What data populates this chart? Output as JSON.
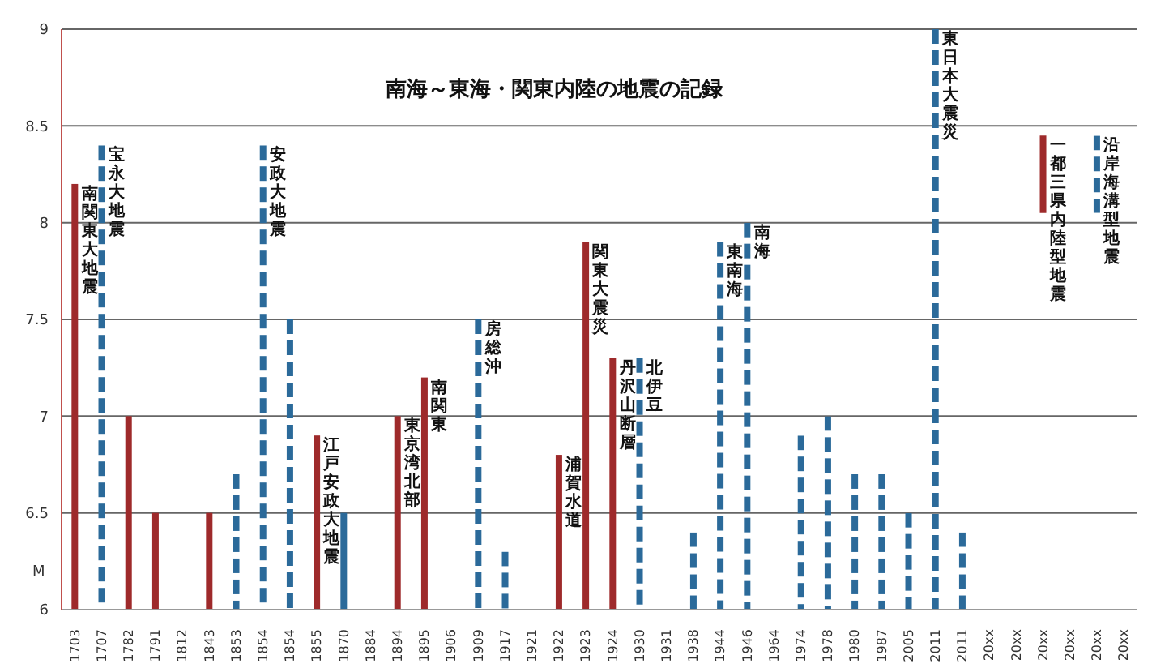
{
  "chart_data": {
    "type": "bar",
    "title": "南海～東海・関東内陸の地震の記録",
    "ylabel": "M",
    "categories": [
      "1703",
      "1707",
      "1782",
      "1791",
      "1812",
      "1843",
      "1853",
      "1854",
      "1854",
      "1855",
      "1870",
      "1884",
      "1894",
      "1895",
      "1906",
      "1909",
      "1917",
      "1921",
      "1922",
      "1923",
      "1924",
      "1930",
      "1931",
      "1938",
      "1944",
      "1946",
      "1964",
      "1974",
      "1978",
      "1980",
      "1987",
      "2005",
      "2011",
      "2011",
      "20xx",
      "20xx",
      "20xx",
      "20xx",
      "20xx",
      "20xx"
    ],
    "series": [
      {
        "color": "#9e2a2b",
        "line_style": "solid",
        "values": [
          8.2,
          null,
          7.0,
          6.5,
          null,
          6.5,
          null,
          null,
          null,
          6.9,
          null,
          null,
          7.0,
          7.2,
          null,
          null,
          null,
          null,
          6.8,
          7.9,
          7.3,
          null,
          null,
          null,
          null,
          null,
          null,
          null,
          null,
          null,
          null,
          null,
          null,
          null,
          null,
          null,
          null,
          null,
          null,
          null
        ]
      },
      {
        "color": "#2b6a9a",
        "line_style": "dashed",
        "values": [
          null,
          8.4,
          null,
          null,
          null,
          null,
          6.7,
          8.4,
          7.5,
          null,
          null,
          null,
          null,
          null,
          null,
          7.5,
          6.3,
          null,
          null,
          null,
          null,
          7.3,
          null,
          6.4,
          7.9,
          8.0,
          null,
          6.9,
          7.0,
          6.7,
          6.7,
          6.5,
          9.0,
          6.4,
          null,
          null,
          null,
          null,
          null,
          null
        ]
      },
      {
        "color": "#2b6a9a",
        "line_style": "solid",
        "values": [
          null,
          null,
          null,
          null,
          null,
          null,
          null,
          null,
          null,
          null,
          6.5,
          null,
          null,
          null,
          null,
          null,
          null,
          null,
          null,
          null,
          null,
          null,
          null,
          null,
          null,
          null,
          null,
          null,
          null,
          null,
          null,
          null,
          null,
          null,
          null,
          null,
          null,
          null,
          null,
          null
        ]
      },
      {
        "color": "#9e2a2b",
        "line_style": "solid",
        "base": [
          null,
          null,
          null,
          null,
          null,
          null,
          null,
          null,
          null,
          null,
          null,
          null,
          null,
          null,
          null,
          null,
          null,
          null,
          null,
          null,
          null,
          null,
          null,
          null,
          null,
          null,
          null,
          null,
          null,
          null,
          null,
          null,
          null,
          null,
          null,
          null,
          8.05,
          null,
          null,
          null
        ],
        "values": [
          null,
          null,
          null,
          null,
          null,
          null,
          null,
          null,
          null,
          null,
          null,
          null,
          null,
          null,
          null,
          null,
          null,
          null,
          null,
          null,
          null,
          null,
          null,
          null,
          null,
          null,
          null,
          null,
          null,
          null,
          null,
          null,
          null,
          null,
          null,
          null,
          0.4,
          null,
          null,
          null
        ]
      },
      {
        "color": "#2b6a9a",
        "line_style": "dashed",
        "base": [
          null,
          null,
          null,
          null,
          null,
          null,
          null,
          null,
          null,
          null,
          null,
          null,
          null,
          null,
          null,
          null,
          null,
          null,
          null,
          null,
          null,
          null,
          null,
          null,
          null,
          null,
          null,
          null,
          null,
          null,
          null,
          null,
          null,
          null,
          null,
          null,
          null,
          null,
          8.05,
          null
        ],
        "values": [
          null,
          null,
          null,
          null,
          null,
          null,
          null,
          null,
          null,
          null,
          null,
          null,
          null,
          null,
          null,
          null,
          null,
          null,
          null,
          null,
          null,
          null,
          null,
          null,
          null,
          null,
          null,
          null,
          null,
          null,
          null,
          null,
          null,
          null,
          null,
          null,
          null,
          null,
          0.4,
          null
        ]
      }
    ],
    "ylim": [
      6,
      9
    ],
    "yticks": [
      6,
      6.5,
      7,
      7.5,
      8,
      8.5,
      9
    ],
    "grid": "y",
    "legend": false,
    "annotations": [
      {
        "text": "南関東大地震",
        "x": "1703",
        "y": 8.2
      },
      {
        "text": "宝永大地震",
        "x": "1707",
        "y": 8.4
      },
      {
        "text": "安政大地震",
        "x": "1854",
        "y": 8.4
      },
      {
        "text": "江戸安政大地震",
        "x": "1855",
        "y": 6.9
      },
      {
        "text": "東京湾北部",
        "x": "1894",
        "y": 7.0
      },
      {
        "text": "南関東",
        "x": "1895",
        "y": 7.2
      },
      {
        "text": "房総沖",
        "x": "1909",
        "y": 7.5
      },
      {
        "text": "浦賀水道",
        "x": "1922",
        "y": 6.8
      },
      {
        "text": "関東大震災",
        "x": "1923",
        "y": 7.9
      },
      {
        "text": "丹沢山断層",
        "x": "1924",
        "y": 7.3
      },
      {
        "text": "北伊豆",
        "x": "1930",
        "y": 7.3
      },
      {
        "text": "東南海",
        "x": "1944",
        "y": 7.9
      },
      {
        "text": "南海",
        "x": "1946",
        "y": 8.0
      },
      {
        "text": "東日本大震災",
        "x": "2011",
        "y": 9.0
      },
      "一都三県内陸型地震",
      "沿岸海溝型地震"
    ]
  }
}
